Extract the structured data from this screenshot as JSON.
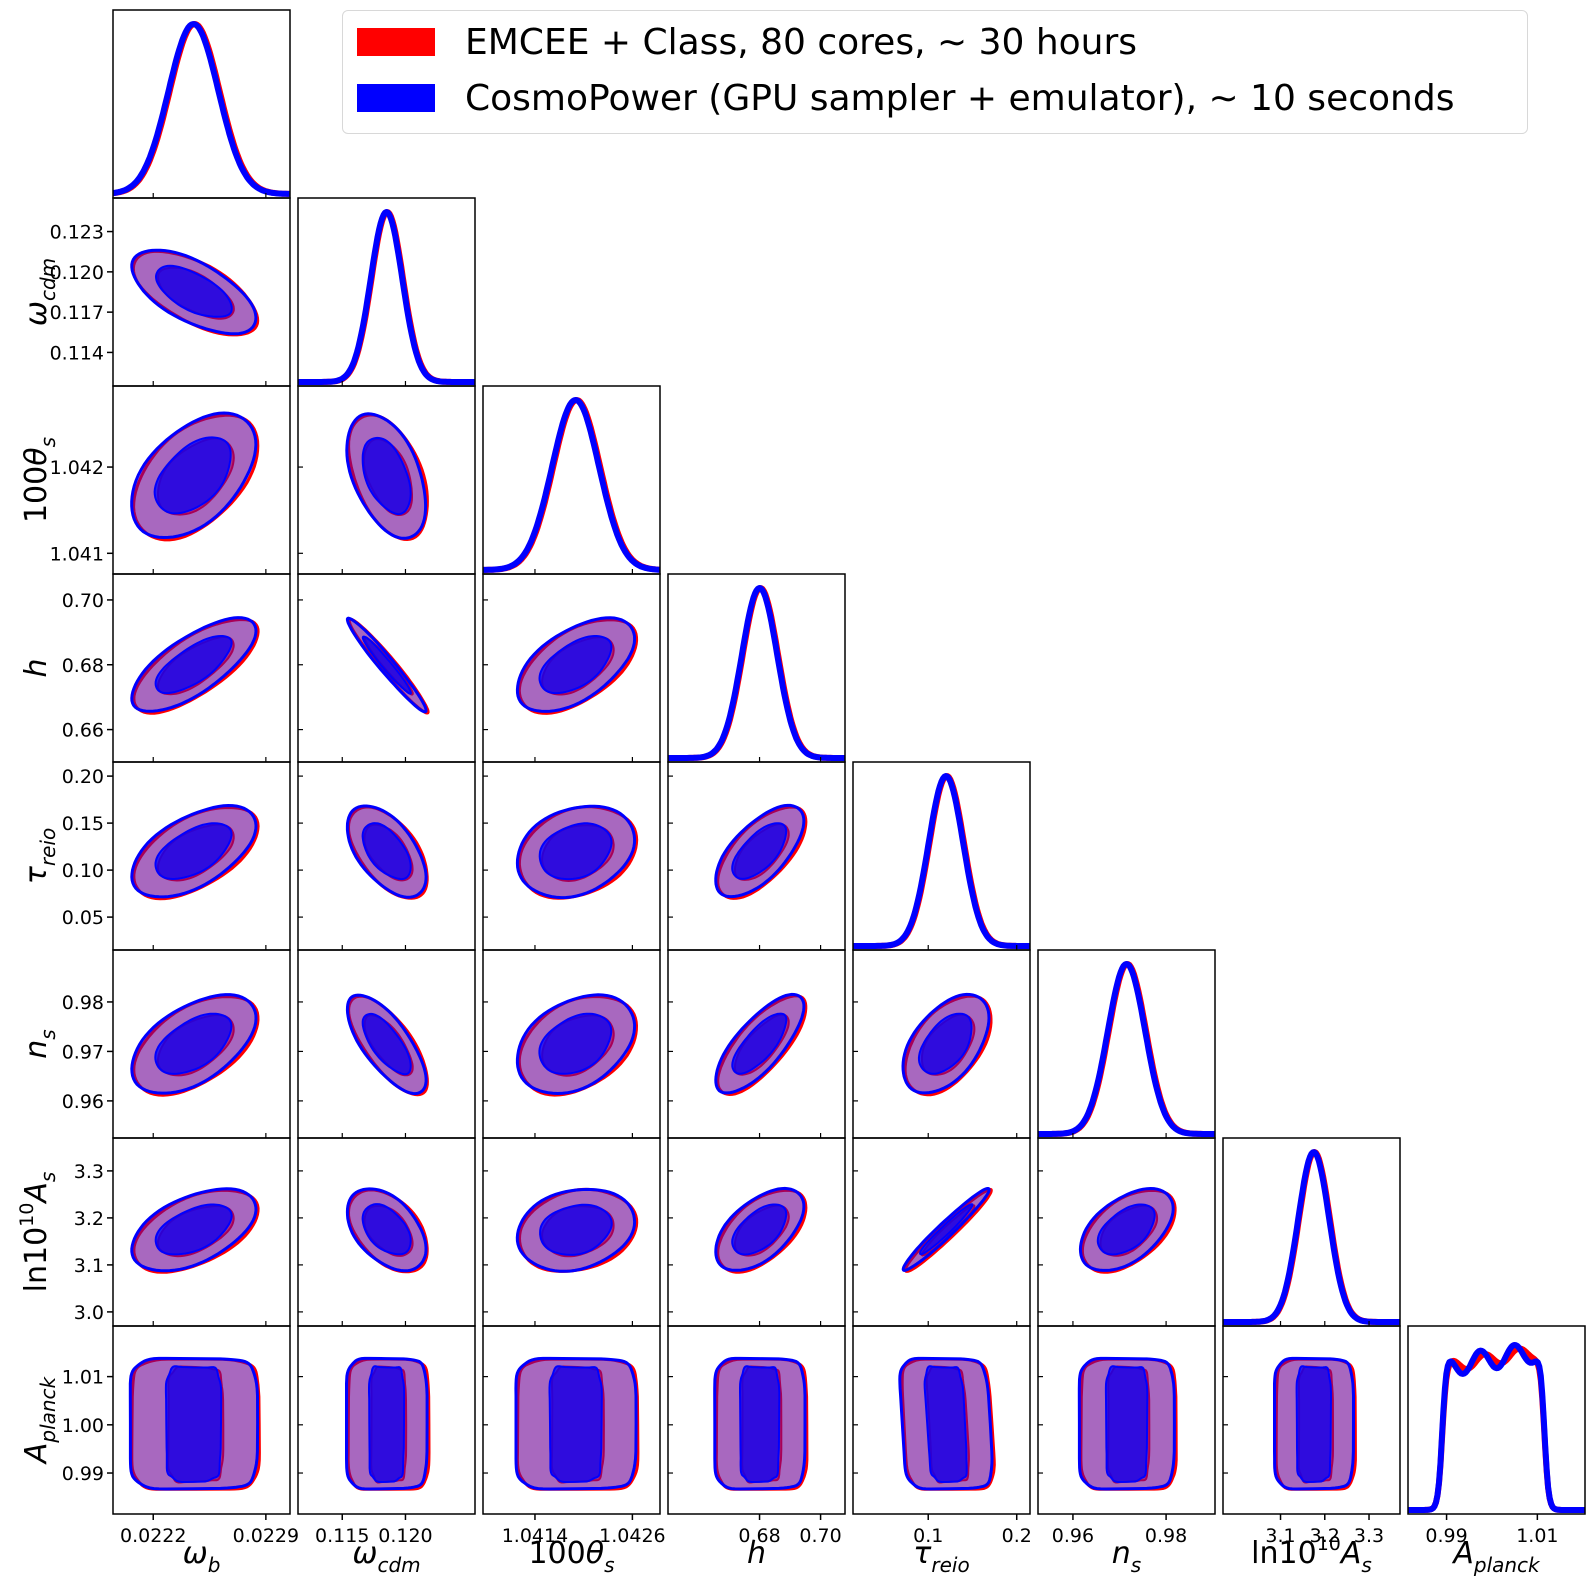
{
  "chart_data": {
    "type": "corner",
    "parameters": [
      {
        "symbol": "ω",
        "sub": "b",
        "range": [
          0.02195,
          0.02305
        ],
        "ticks": [
          {
            "v": 0.0222,
            "label": "0.0222"
          },
          {
            "v": 0.0229,
            "label": "0.0229"
          }
        ],
        "mean": 0.02245,
        "sd": 0.000155
      },
      {
        "symbol": "ω",
        "sub": "cdm",
        "range": [
          0.1115,
          0.1255
        ],
        "ticks": [
          {
            "v": 0.114,
            "label": "0.114"
          },
          {
            "v": 0.117,
            "label": "0.117"
          },
          {
            "v": 0.12,
            "label": "0.120"
          },
          {
            "v": 0.123,
            "label": "0.123"
          }
        ],
        "xticks": [
          {
            "v": 0.115,
            "label": "0.115"
          },
          {
            "v": 0.12,
            "label": "0.120"
          }
        ],
        "mean": 0.1185,
        "sd": 0.00125
      },
      {
        "symbol": "100θ",
        "sub": "s",
        "range": [
          1.04076,
          1.04294
        ],
        "ticks": [
          {
            "v": 1.041,
            "label": "1.041"
          },
          {
            "v": 1.042,
            "label": "1.042"
          }
        ],
        "xticks": [
          {
            "v": 1.0414,
            "label": "1.0414"
          },
          {
            "v": 1.0426,
            "label": "1.0426"
          }
        ],
        "mean": 1.0419,
        "sd": 0.00029
      },
      {
        "symbol": "h",
        "sub": "",
        "range": [
          0.65,
          0.708
        ],
        "ticks": [
          {
            "v": 0.66,
            "label": "0.66"
          },
          {
            "v": 0.68,
            "label": "0.68"
          },
          {
            "v": 0.7,
            "label": "0.70"
          }
        ],
        "xticks": [
          {
            "v": 0.68,
            "label": "0.68"
          },
          {
            "v": 0.7,
            "label": "0.70"
          }
        ],
        "mean": 0.68,
        "sd": 0.0058
      },
      {
        "symbol": "τ",
        "sub": "reio",
        "range": [
          0.015,
          0.215
        ],
        "ticks": [
          {
            "v": 0.05,
            "label": "0.05"
          },
          {
            "v": 0.1,
            "label": "0.10"
          },
          {
            "v": 0.15,
            "label": "0.15"
          },
          {
            "v": 0.2,
            "label": "0.20"
          }
        ],
        "xticks": [
          {
            "v": 0.1,
            "label": "0.1"
          },
          {
            "v": 0.2,
            "label": "0.2"
          }
        ],
        "mean": 0.12,
        "sd": 0.0195
      },
      {
        "symbol": "n",
        "sub": "s",
        "range": [
          0.9525,
          0.9905
        ],
        "ticks": [
          {
            "v": 0.96,
            "label": "0.96"
          },
          {
            "v": 0.97,
            "label": "0.97"
          },
          {
            "v": 0.98,
            "label": "0.98"
          }
        ],
        "xticks": [
          {
            "v": 0.96,
            "label": "0.96"
          },
          {
            "v": 0.98,
            "label": "0.98"
          }
        ],
        "mean": 0.9715,
        "sd": 0.004
      },
      {
        "symbol": "ln10",
        "sup": "10",
        "tail": "A",
        "sub": "s",
        "range": [
          2.97,
          3.37
        ],
        "ticks": [
          {
            "v": 3.0,
            "label": "3.0"
          },
          {
            "v": 3.1,
            "label": "3.1"
          },
          {
            "v": 3.2,
            "label": "3.2"
          },
          {
            "v": 3.3,
            "label": "3.3"
          }
        ],
        "xticks": [
          {
            "v": 3.1,
            "label": "3.1"
          },
          {
            "v": 3.2,
            "label": "3.2"
          },
          {
            "v": 3.3,
            "label": "3.3"
          }
        ],
        "mean": 3.175,
        "sd": 0.035
      },
      {
        "symbol": "A",
        "sub": "planck",
        "range": [
          0.9815,
          1.0205
        ],
        "ticks": [
          {
            "v": 0.99,
            "label": "0.99"
          },
          {
            "v": 1.0,
            "label": "1.00"
          },
          {
            "v": 1.01,
            "label": "1.01"
          }
        ],
        "xticks": [
          {
            "v": 0.99,
            "label": "0.99"
          },
          {
            "v": 1.01,
            "label": "1.01"
          }
        ],
        "flat": [
          0.989,
          1.0115
        ]
      }
    ],
    "correlations": [
      [
        1,
        -0.62,
        0.48,
        0.72,
        0.55,
        0.52,
        0.5,
        0
      ],
      [
        -0.62,
        1,
        -0.45,
        -0.97,
        -0.55,
        -0.72,
        -0.45,
        0
      ],
      [
        0.48,
        -0.45,
        1,
        0.55,
        0.25,
        0.35,
        0.2,
        0
      ],
      [
        0.72,
        -0.97,
        0.55,
        1,
        0.65,
        0.75,
        0.55,
        0
      ],
      [
        0.55,
        -0.55,
        0.25,
        0.65,
        1,
        0.5,
        0.97,
        -0.1
      ],
      [
        0.52,
        -0.72,
        0.35,
        0.75,
        0.5,
        1,
        0.5,
        0
      ],
      [
        0.5,
        -0.45,
        0.2,
        0.55,
        0.97,
        0.5,
        1,
        0
      ],
      [
        0,
        0,
        0,
        0,
        -0.1,
        0,
        0,
        1
      ]
    ],
    "series": [
      {
        "name": "EMCEE + Class, 80 cores,  ∼  30 hours",
        "color": "#ff0000",
        "shift": 0.05
      },
      {
        "name": "CosmoPower (GPU sampler + emulator),  ∼  10 seconds",
        "color": "#0000ff",
        "shift": 0
      }
    ],
    "contour_fill_outer": "#a898ee",
    "contour_fill_inner": "#2a06d8",
    "contour_edge": "#7a3aa8"
  },
  "legend": {
    "items": [
      {
        "label": "EMCEE + Class, 80 cores,  ∼  30 hours",
        "color": "#ff0000"
      },
      {
        "label": "CosmoPower (GPU sampler + emulator),  ∼  10 seconds",
        "color": "#0000ff"
      }
    ]
  }
}
